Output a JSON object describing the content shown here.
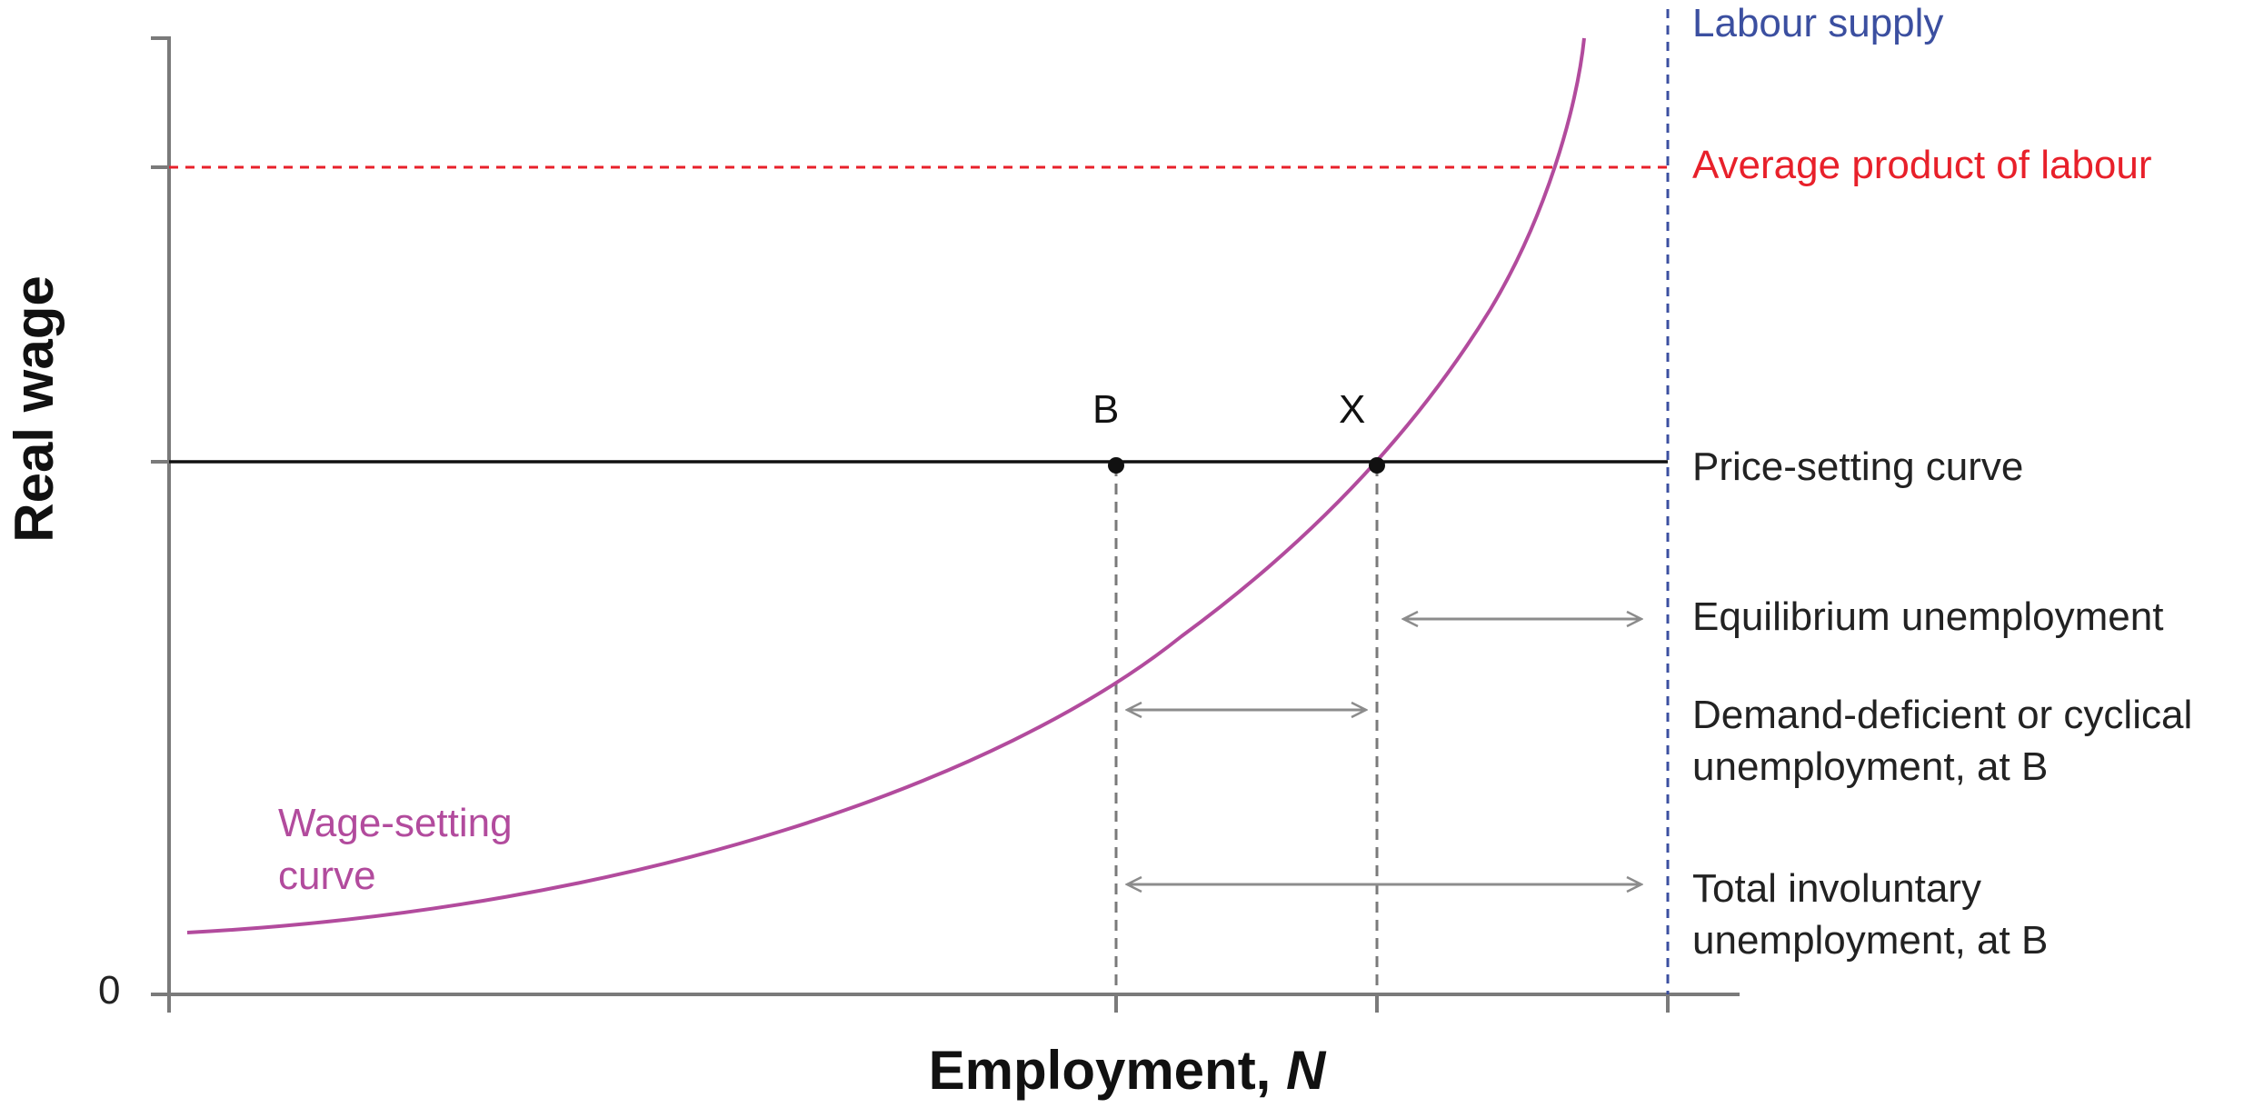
{
  "axes": {
    "y_title": "Real wage",
    "x_title_main": "Employment, ",
    "x_title_var": "N",
    "origin_label": "0"
  },
  "points": {
    "b_label": "B",
    "x_label": "X"
  },
  "curves": {
    "labour_supply": "Labour supply",
    "average_product": "Average product of labour",
    "price_setting": "Price-setting curve",
    "wage_setting_line1": "Wage-setting",
    "wage_setting_line2": "curve"
  },
  "annotations": {
    "equilibrium_unemployment": "Equilibrium unemployment",
    "cyclical_line1": "Demand-deficient or cyclical",
    "cyclical_line2": "unemployment, at B",
    "involuntary_line1": "Total involuntary",
    "involuntary_line2": "unemployment, at B"
  },
  "colors": {
    "axis": "#7a7a7a",
    "labour_supply": "#3b4fa0",
    "average_product": "#e8202a",
    "price_setting": "#111111",
    "wage_setting": "#b24b9d",
    "guide": "#7a7a7a",
    "arrow": "#8c8c8c",
    "text": "#222222"
  }
}
